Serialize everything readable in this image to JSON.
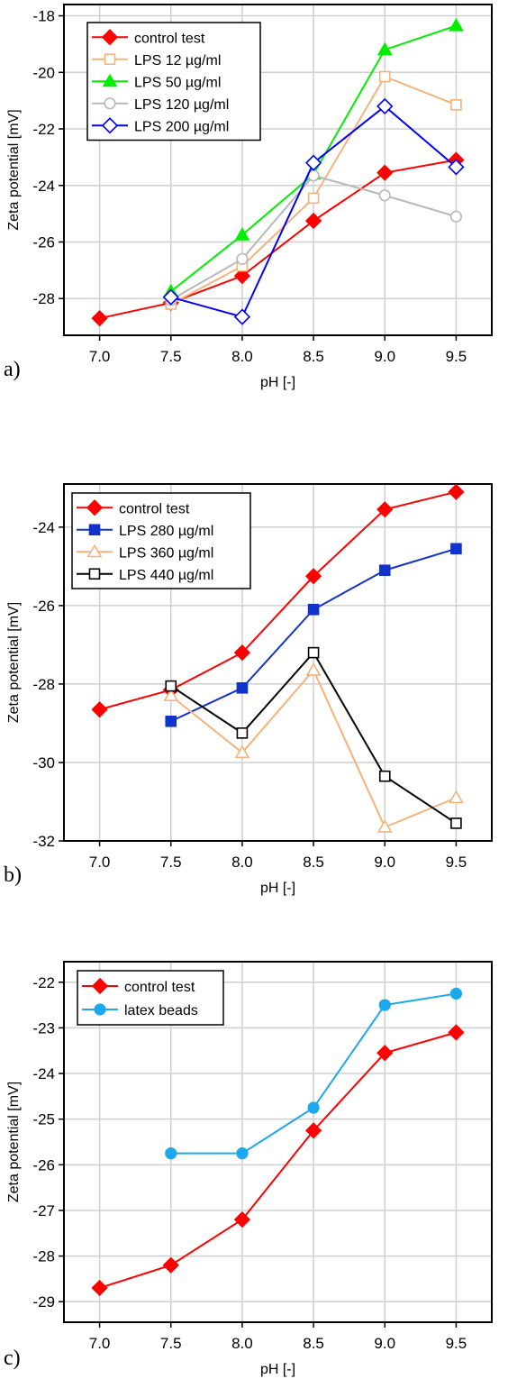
{
  "chart_data": [
    {
      "type": "line",
      "panel_label": "a)",
      "xlabel": "pH [-]",
      "ylabel": "Zeta potential [mV]",
      "xlim": [
        6.75,
        9.75
      ],
      "ylim": [
        -29.3,
        -17.6
      ],
      "xticks": [
        7.0,
        7.5,
        8.0,
        8.5,
        9.0,
        9.5
      ],
      "xtick_labels": [
        "7.0",
        "7.5",
        "8.0",
        "8.5",
        "9.0",
        "9.5"
      ],
      "yticks": [
        -28,
        -26,
        -24,
        -22,
        -20,
        -18
      ],
      "ytick_labels": [
        "-28",
        "-26",
        "-24",
        "-22",
        "-20",
        "-18"
      ],
      "grid": true,
      "legend_position": "top-left",
      "series": [
        {
          "name": "control test",
          "color": "#ff0000",
          "marker": "diamond",
          "filled": true,
          "x": [
            7.0,
            7.5,
            8.0,
            8.5,
            9.0,
            9.5
          ],
          "y": [
            -28.7,
            -28.15,
            -27.2,
            -25.25,
            -23.55,
            -23.1
          ]
        },
        {
          "name": "LPS 12 µg/ml",
          "color": "#f5b27a",
          "marker": "square",
          "filled": false,
          "x": [
            7.5,
            8.0,
            8.5,
            9.0,
            9.5
          ],
          "y": [
            -28.2,
            -26.85,
            -24.45,
            -20.15,
            -21.15
          ]
        },
        {
          "name": "LPS 50 µg/ml",
          "color": "#00ee00",
          "marker": "triangle",
          "filled": true,
          "x": [
            7.5,
            8.0,
            8.5,
            9.0,
            9.5
          ],
          "y": [
            -27.75,
            -25.75,
            -23.6,
            -19.2,
            -18.35
          ]
        },
        {
          "name": "LPS 120 µg/ml",
          "color": "#b8b8b8",
          "marker": "circle",
          "filled": false,
          "x": [
            7.5,
            8.0,
            8.5,
            9.0,
            9.5
          ],
          "y": [
            -28.05,
            -26.6,
            -23.65,
            -24.35,
            -25.1
          ]
        },
        {
          "name": "LPS 200 µg/ml",
          "color": "#0000ff",
          "marker": "diamond",
          "filled": false,
          "x": [
            7.5,
            8.0,
            8.5,
            9.0,
            9.5
          ],
          "y": [
            -27.95,
            -28.65,
            -23.2,
            -21.2,
            -23.35
          ]
        }
      ]
    },
    {
      "type": "line",
      "panel_label": "b)",
      "xlabel": "pH [-]",
      "ylabel": "Zeta potential [mV]",
      "xlim": [
        6.75,
        9.75
      ],
      "ylim": [
        -32.0,
        -22.9
      ],
      "xticks": [
        7.0,
        7.5,
        8.0,
        8.5,
        9.0,
        9.5
      ],
      "xtick_labels": [
        "7.0",
        "7.5",
        "8.0",
        "8.5",
        "9.0",
        "9.5"
      ],
      "yticks": [
        -32,
        -30,
        -28,
        -26,
        -24
      ],
      "ytick_labels": [
        "-32",
        "-30",
        "-28",
        "-26",
        "-24"
      ],
      "grid": true,
      "legend_position": "top-left",
      "series": [
        {
          "name": "control test",
          "color": "#ff0000",
          "marker": "diamond",
          "filled": true,
          "x": [
            7.0,
            7.5,
            8.0,
            8.5,
            9.0,
            9.5
          ],
          "y": [
            -28.65,
            -28.15,
            -27.2,
            -25.25,
            -23.55,
            -23.1
          ]
        },
        {
          "name": "LPS 280 µg/ml",
          "color": "#1133cc",
          "marker": "square",
          "filled": true,
          "x": [
            7.5,
            8.0,
            8.5,
            9.0,
            9.5
          ],
          "y": [
            -28.95,
            -28.1,
            -26.1,
            -25.1,
            -24.55
          ]
        },
        {
          "name": "LPS 360 µg/ml",
          "color": "#f5b27a",
          "marker": "triangle",
          "filled": false,
          "x": [
            7.5,
            8.0,
            8.5,
            9.0,
            9.5
          ],
          "y": [
            -28.3,
            -29.75,
            -27.65,
            -31.65,
            -30.9
          ]
        },
        {
          "name": "LPS 440 µg/ml",
          "color": "#000000",
          "marker": "square",
          "filled": false,
          "x": [
            7.5,
            8.0,
            8.5,
            9.0,
            9.5
          ],
          "y": [
            -28.05,
            -29.25,
            -27.2,
            -30.35,
            -31.55
          ]
        }
      ]
    },
    {
      "type": "line",
      "panel_label": "c)",
      "xlabel": "pH [-]",
      "ylabel": "Zeta potential [mV]",
      "xlim": [
        6.75,
        9.75
      ],
      "ylim": [
        -29.45,
        -21.55
      ],
      "xticks": [
        7.0,
        7.5,
        8.0,
        8.5,
        9.0,
        9.5
      ],
      "xtick_labels": [
        "7.0",
        "7.5",
        "8.0",
        "8.5",
        "9.0",
        "9.5"
      ],
      "yticks": [
        -29,
        -28,
        -27,
        -26,
        -25,
        -24,
        -23,
        -22
      ],
      "ytick_labels": [
        "-29",
        "-28",
        "-27",
        "-26",
        "-25",
        "-24",
        "-23",
        "-22"
      ],
      "grid": true,
      "legend_position": "top-left",
      "series": [
        {
          "name": "control test",
          "color": "#ff0000",
          "marker": "diamond",
          "filled": true,
          "x": [
            7.0,
            7.5,
            8.0,
            8.5,
            9.0,
            9.5
          ],
          "y": [
            -28.7,
            -28.2,
            -27.2,
            -25.25,
            -23.55,
            -23.1
          ]
        },
        {
          "name": "latex beads",
          "color": "#1ca8ee",
          "marker": "circle",
          "filled": true,
          "x": [
            7.5,
            8.0,
            8.5,
            9.0,
            9.5
          ],
          "y": [
            -25.75,
            -25.75,
            -24.75,
            -22.5,
            -22.25
          ]
        }
      ]
    }
  ]
}
